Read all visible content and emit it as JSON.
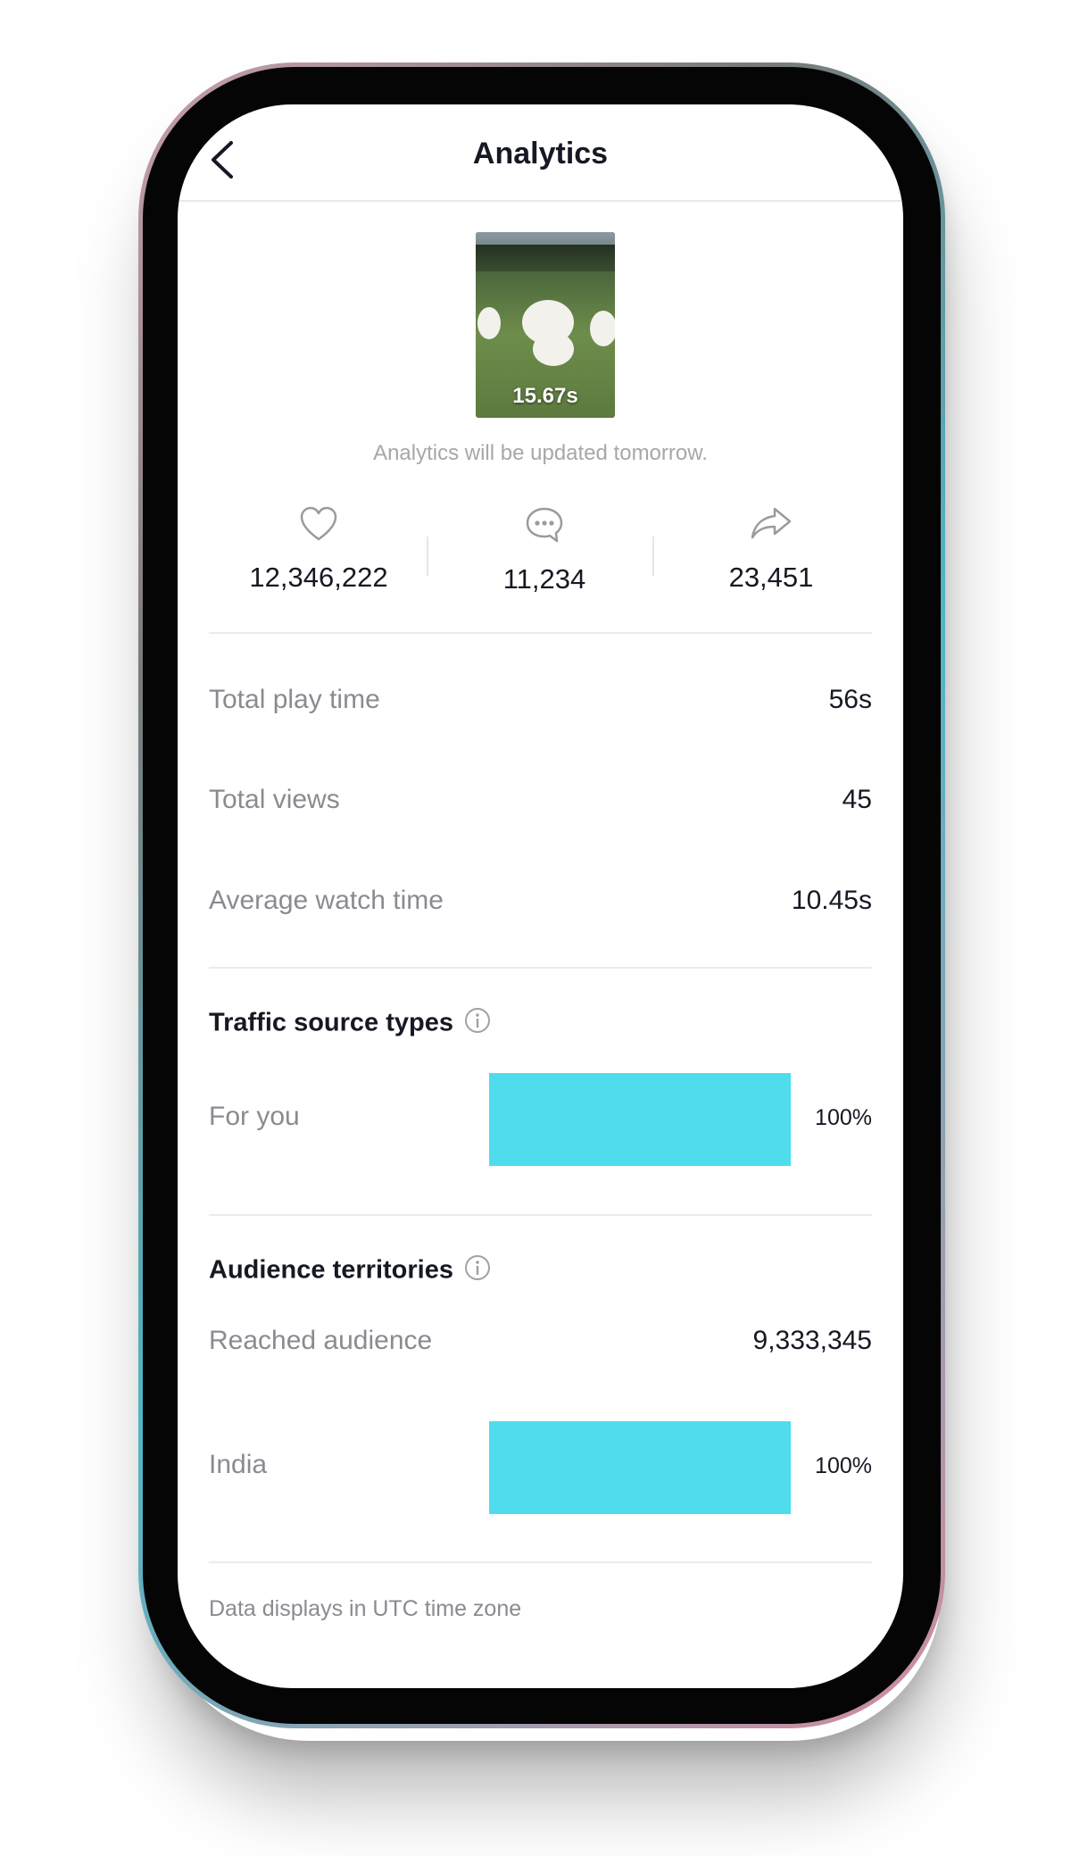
{
  "header": {
    "title": "Analytics",
    "back_icon": "chevron-left-icon"
  },
  "video": {
    "duration": "15.67s",
    "notice": "Analytics will be updated tomorrow."
  },
  "stats": {
    "likes": {
      "icon": "heart-icon",
      "value": "12,346,222"
    },
    "comments": {
      "icon": "comment-icon",
      "value": "11,234"
    },
    "shares": {
      "icon": "share-icon",
      "value": "23,451"
    }
  },
  "metrics": [
    {
      "label": "Total play time",
      "value": "56s"
    },
    {
      "label": "Total views",
      "value": "45"
    },
    {
      "label": "Average watch time",
      "value": "10.45s"
    }
  ],
  "traffic": {
    "title": "Traffic source types",
    "info_icon": "info-icon",
    "rows": [
      {
        "label": "For you",
        "percent": "100%",
        "fill": 1.0
      }
    ]
  },
  "audience": {
    "title": "Audience territories",
    "info_icon": "info-icon",
    "reached_label": "Reached audience",
    "reached_value": "9,333,345",
    "rows": [
      {
        "label": "India",
        "percent": "100%",
        "fill": 1.0
      }
    ]
  },
  "footer": {
    "note": "Data displays in UTC time zone"
  },
  "colors": {
    "bar": "#4fddee",
    "muted_text": "#8a8b91",
    "primary_text": "#161823"
  }
}
